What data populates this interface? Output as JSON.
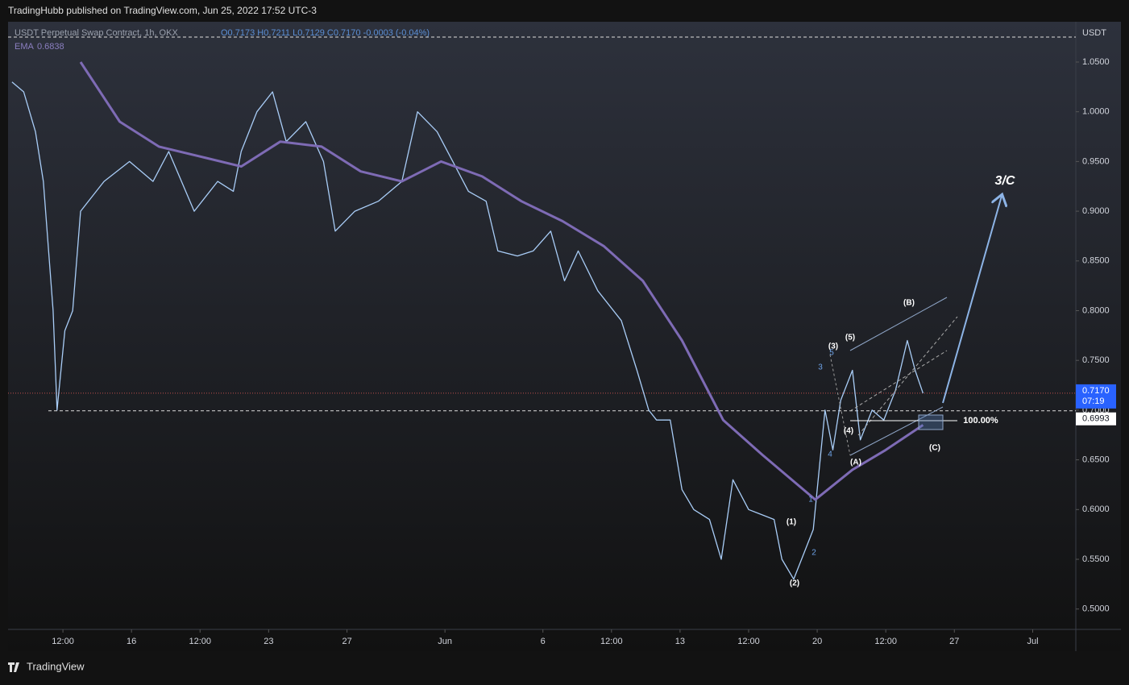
{
  "header": {
    "title": "TradingHubb published on TradingView.com, Jun 25, 2022 17:52 UTC-3"
  },
  "footer": {
    "brand": "TradingView"
  },
  "chart_data": {
    "type": "line",
    "title": "USDT Perpetual Swap Contract, 1h, OKX",
    "ohlc": "O0.7173 H0.7211 L0.7129 C0.7170 -0.0003 (-0.04%)",
    "y_axis_label": "USDT",
    "xlim": [
      9.7,
      64.2
    ],
    "xticks": [
      {
        "value": 12.5,
        "label": "12:00"
      },
      16,
      {
        "value": 19.5,
        "label": "12:00"
      },
      23,
      27,
      {
        "value": 32,
        "label": "Jun"
      },
      {
        "value": 37,
        "label": "6"
      },
      {
        "value": 40.5,
        "label": "12:00"
      },
      {
        "value": 44,
        "label": "13"
      },
      {
        "value": 47.5,
        "label": "12:00"
      },
      {
        "value": 51,
        "label": "20"
      },
      {
        "value": 54.5,
        "label": "12:00"
      },
      {
        "value": 58,
        "label": "27"
      },
      {
        "value": 62,
        "label": "Jul"
      }
    ],
    "ylim": [
      0.4795,
      1.0905
    ],
    "yticks": [
      {
        "value": 0.5,
        "label": "0.5000"
      },
      {
        "value": 0.55,
        "label": "0.5500"
      },
      {
        "value": 0.6,
        "label": "0.6000"
      },
      {
        "value": 0.65,
        "label": "0.6500"
      },
      {
        "value": 0.7,
        "label": "0.7000"
      },
      {
        "value": 0.75,
        "label": "0.7500"
      },
      {
        "value": 0.8,
        "label": "0.8000"
      },
      {
        "value": 0.85,
        "label": "0.8500"
      },
      {
        "value": 0.9,
        "label": "0.9000"
      },
      {
        "value": 0.95,
        "label": "0.9500"
      },
      {
        "value": 1.0,
        "label": "1.0000"
      },
      {
        "value": 1.05,
        "label": "1.0500"
      }
    ],
    "series": [
      {
        "name": "Price",
        "color": "#a9cdf7",
        "x": [
          9.9,
          10.5,
          11.1,
          11.5,
          12.0,
          12.2,
          12.6,
          13.0,
          13.4,
          14.6,
          15.9,
          17.1,
          17.9,
          19.2,
          20.4,
          21.2,
          21.6,
          22.4,
          23.2,
          23.9,
          24.9,
          25.8,
          26.4,
          27.4,
          28.6,
          29.8,
          30.6,
          31.6,
          32.4,
          33.2,
          34.1,
          34.7,
          35.7,
          36.5,
          37.4,
          38.1,
          38.8,
          39.8,
          41.0,
          41.8,
          42.4,
          42.8,
          43.5,
          44.1,
          44.7,
          45.5,
          46.1,
          46.7,
          47.5,
          48.8,
          49.2,
          49.8,
          50.4,
          50.8,
          51.4,
          51.8,
          52.2,
          52.8,
          53.2,
          53.8,
          54.4,
          55.0,
          55.6,
          56.0,
          56.4
        ],
        "values": [
          1.03,
          1.02,
          0.98,
          0.93,
          0.8,
          0.7,
          0.78,
          0.8,
          0.9,
          0.93,
          0.95,
          0.93,
          0.96,
          0.9,
          0.93,
          0.92,
          0.96,
          1.0,
          1.02,
          0.97,
          0.99,
          0.95,
          0.88,
          0.9,
          0.91,
          0.93,
          1.0,
          0.98,
          0.95,
          0.92,
          0.91,
          0.86,
          0.855,
          0.86,
          0.88,
          0.83,
          0.86,
          0.82,
          0.79,
          0.74,
          0.7,
          0.69,
          0.69,
          0.62,
          0.6,
          0.59,
          0.55,
          0.63,
          0.6,
          0.59,
          0.55,
          0.53,
          0.56,
          0.58,
          0.7,
          0.66,
          0.71,
          0.74,
          0.67,
          0.7,
          0.69,
          0.72,
          0.77,
          0.74,
          0.717
        ]
      },
      {
        "name": "EMA",
        "color": "#7e6bb5",
        "last": 0.6838,
        "x": [
          13.4,
          15.4,
          17.4,
          19.5,
          21.6,
          23.6,
          25.7,
          27.7,
          29.8,
          31.8,
          33.9,
          35.9,
          38.0,
          40.1,
          42.1,
          44.1,
          46.2,
          48.2,
          50.3,
          50.9,
          52.8,
          54.5,
          56.4
        ],
        "values": [
          1.05,
          0.99,
          0.965,
          0.955,
          0.945,
          0.97,
          0.965,
          0.94,
          0.93,
          0.95,
          0.935,
          0.91,
          0.89,
          0.865,
          0.83,
          0.77,
          0.69,
          0.655,
          0.62,
          0.61,
          0.64,
          0.66,
          0.685
        ]
      }
    ],
    "last_price": {
      "value": 0.717,
      "label": "0.7170"
    },
    "countdown": "07:19",
    "level": {
      "value": 0.6993,
      "label": "0.6993"
    },
    "annotations": [
      "(1)",
      "(2)",
      "(3)",
      "(4)",
      "(5)",
      "(A)",
      "(B)",
      "(C)",
      "1",
      "2",
      "3",
      "4",
      "5",
      "3/C",
      "100.00%"
    ]
  }
}
